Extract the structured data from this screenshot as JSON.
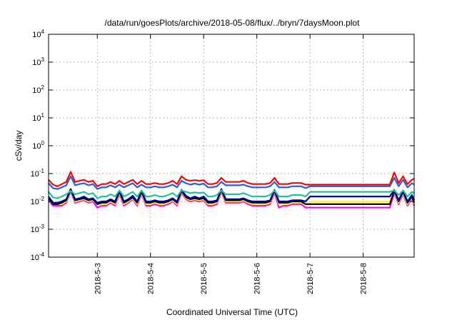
{
  "chart_data": {
    "type": "line",
    "title": "/data/run/goesPlots/archive/2018-05-08/flux/../bryn/7daysMoon.plot",
    "xlabel": "Coordinated Universal Time (UTC)",
    "ylabel": "cSv/day",
    "yscale": "log",
    "ylim": [
      0.0001,
      10000
    ],
    "y_ticks": [
      {
        "base": "10",
        "exp": "-4"
      },
      {
        "base": "10",
        "exp": "-3"
      },
      {
        "base": "10",
        "exp": "-2"
      },
      {
        "base": "10",
        "exp": "-1"
      },
      {
        "base": "10",
        "exp": "0"
      },
      {
        "base": "10",
        "exp": "1"
      },
      {
        "base": "10",
        "exp": "2"
      },
      {
        "base": "10",
        "exp": "3"
      },
      {
        "base": "10",
        "exp": "4"
      }
    ],
    "xlim": [
      "2018-05-02T02:00",
      "2018-05-08T23:00"
    ],
    "x_ticks": [
      {
        "label": "2018-5-3",
        "x": "2018-05-03T00:00"
      },
      {
        "label": "2018-5-4",
        "x": "2018-05-04T00:00"
      },
      {
        "label": "2018-5-5",
        "x": "2018-05-05T00:00"
      },
      {
        "label": "2018-5-6",
        "x": "2018-05-06T00:00"
      },
      {
        "label": "2018-5-7",
        "x": "2018-05-07T00:00"
      },
      {
        "label": "2018-5-8",
        "x": "2018-05-08T00:00"
      }
    ],
    "grid": true,
    "legend": "none",
    "x": [
      "2018-05-02T02:00",
      "2018-05-02T04:00",
      "2018-05-02T06:00",
      "2018-05-02T08:00",
      "2018-05-02T10:00",
      "2018-05-02T12:00",
      "2018-05-02T14:00",
      "2018-05-02T16:00",
      "2018-05-02T18:00",
      "2018-05-02T20:00",
      "2018-05-02T22:00",
      "2018-05-03T00:00",
      "2018-05-03T02:00",
      "2018-05-03T04:00",
      "2018-05-03T06:00",
      "2018-05-03T08:00",
      "2018-05-03T10:00",
      "2018-05-03T12:00",
      "2018-05-03T14:00",
      "2018-05-03T16:00",
      "2018-05-03T18:00",
      "2018-05-03T20:00",
      "2018-05-03T22:00",
      "2018-05-04T00:00",
      "2018-05-04T02:00",
      "2018-05-04T04:00",
      "2018-05-04T06:00",
      "2018-05-04T08:00",
      "2018-05-04T10:00",
      "2018-05-04T12:00",
      "2018-05-04T14:00",
      "2018-05-04T16:00",
      "2018-05-04T18:00",
      "2018-05-04T20:00",
      "2018-05-04T22:00",
      "2018-05-05T00:00",
      "2018-05-05T02:00",
      "2018-05-05T04:00",
      "2018-05-05T06:00",
      "2018-05-05T08:00",
      "2018-05-05T10:00",
      "2018-05-05T12:00",
      "2018-05-05T14:00",
      "2018-05-05T16:00",
      "2018-05-05T18:00",
      "2018-05-05T20:00",
      "2018-05-05T22:00",
      "2018-05-06T00:00",
      "2018-05-06T02:00",
      "2018-05-06T04:00",
      "2018-05-06T06:00",
      "2018-05-06T08:00",
      "2018-05-06T10:00",
      "2018-05-06T12:00",
      "2018-05-06T14:00",
      "2018-05-06T16:00",
      "2018-05-06T18:00",
      "2018-05-06T20:00",
      "2018-05-06T22:00",
      "2018-05-07T00:00",
      "2018-05-07T02:00",
      "2018-05-07T04:00",
      "2018-05-07T06:00",
      "2018-05-07T08:00",
      "2018-05-07T10:00",
      "2018-05-07T12:00",
      "2018-05-07T14:00",
      "2018-05-07T16:00",
      "2018-05-07T18:00",
      "2018-05-07T20:00",
      "2018-05-07T22:00",
      "2018-05-08T00:00",
      "2018-05-08T02:00",
      "2018-05-08T04:00",
      "2018-05-08T06:00",
      "2018-05-08T08:00",
      "2018-05-08T10:00",
      "2018-05-08T12:00",
      "2018-05-08T14:00",
      "2018-05-08T16:00",
      "2018-05-08T18:00",
      "2018-05-08T20:00",
      "2018-05-08T22:00",
      "2018-05-08T23:00"
    ],
    "series": [
      {
        "color": "#ff00ff",
        "values": [
          0.011,
          0.007,
          0.007,
          0.007,
          0.009,
          0.022,
          0.009,
          0.01,
          0.011,
          0.009,
          0.01,
          0.006,
          0.007,
          0.007,
          0.009,
          0.007,
          0.018,
          0.007,
          0.009,
          0.012,
          0.007,
          0.018,
          0.007,
          0.007,
          0.008,
          0.007,
          0.007,
          0.008,
          0.01,
          0.007,
          0.02,
          0.012,
          0.01,
          0.011,
          0.01,
          0.011,
          0.007,
          0.007,
          0.008,
          0.022,
          0.009,
          0.009,
          0.009,
          0.009,
          0.01,
          0.008,
          0.007,
          0.007,
          0.007,
          0.007,
          0.008,
          0.02,
          0.006,
          0.007,
          0.007,
          0.008,
          0.008,
          0.008,
          0.006,
          0.006,
          0.006,
          0.006,
          0.006,
          0.006,
          0.006,
          0.006,
          0.006,
          0.006,
          0.006,
          0.006,
          0.006,
          0.006,
          0.006,
          0.006,
          0.006,
          0.006,
          0.006,
          0.006,
          0.02,
          0.008,
          0.018,
          0.007,
          0.013,
          0.007
        ]
      },
      {
        "color": "#ffff00",
        "values": [
          0.012,
          0.008,
          0.008,
          0.008,
          0.01,
          0.024,
          0.01,
          0.011,
          0.012,
          0.01,
          0.011,
          0.008,
          0.008,
          0.008,
          0.01,
          0.008,
          0.02,
          0.008,
          0.01,
          0.013,
          0.008,
          0.02,
          0.008,
          0.008,
          0.009,
          0.008,
          0.008,
          0.009,
          0.011,
          0.008,
          0.022,
          0.013,
          0.011,
          0.012,
          0.011,
          0.012,
          0.008,
          0.008,
          0.009,
          0.024,
          0.01,
          0.01,
          0.01,
          0.01,
          0.011,
          0.009,
          0.008,
          0.008,
          0.008,
          0.008,
          0.009,
          0.022,
          0.008,
          0.008,
          0.008,
          0.009,
          0.009,
          0.009,
          0.008,
          0.01,
          0.01,
          0.01,
          0.01,
          0.01,
          0.01,
          0.01,
          0.01,
          0.01,
          0.01,
          0.01,
          0.01,
          0.01,
          0.01,
          0.01,
          0.01,
          0.01,
          0.01,
          0.01,
          0.022,
          0.009,
          0.02,
          0.008,
          0.014,
          0.008
        ]
      },
      {
        "color": "#000000",
        "values": [
          0.013,
          0.008,
          0.008,
          0.009,
          0.011,
          0.026,
          0.011,
          0.012,
          0.013,
          0.011,
          0.012,
          0.008,
          0.009,
          0.009,
          0.011,
          0.009,
          0.022,
          0.009,
          0.011,
          0.014,
          0.009,
          0.022,
          0.009,
          0.009,
          0.01,
          0.009,
          0.009,
          0.01,
          0.012,
          0.009,
          0.024,
          0.014,
          0.012,
          0.013,
          0.012,
          0.013,
          0.009,
          0.009,
          0.01,
          0.026,
          0.011,
          0.011,
          0.011,
          0.011,
          0.012,
          0.01,
          0.009,
          0.009,
          0.009,
          0.009,
          0.01,
          0.024,
          0.009,
          0.009,
          0.009,
          0.01,
          0.01,
          0.01,
          0.008,
          0.008,
          0.008,
          0.008,
          0.008,
          0.008,
          0.008,
          0.008,
          0.008,
          0.008,
          0.008,
          0.008,
          0.008,
          0.008,
          0.008,
          0.008,
          0.008,
          0.008,
          0.008,
          0.008,
          0.024,
          0.01,
          0.022,
          0.009,
          0.015,
          0.009
        ]
      },
      {
        "color": "#0000a0",
        "values": [
          0.015,
          0.009,
          0.009,
          0.01,
          0.012,
          0.028,
          0.012,
          0.013,
          0.015,
          0.012,
          0.013,
          0.009,
          0.01,
          0.01,
          0.012,
          0.01,
          0.024,
          0.01,
          0.012,
          0.016,
          0.01,
          0.024,
          0.01,
          0.01,
          0.011,
          0.01,
          0.01,
          0.011,
          0.013,
          0.01,
          0.026,
          0.016,
          0.013,
          0.015,
          0.013,
          0.015,
          0.01,
          0.01,
          0.011,
          0.028,
          0.012,
          0.012,
          0.012,
          0.012,
          0.013,
          0.011,
          0.01,
          0.01,
          0.01,
          0.01,
          0.011,
          0.026,
          0.01,
          0.01,
          0.01,
          0.011,
          0.011,
          0.011,
          0.01,
          0.015,
          0.015,
          0.015,
          0.015,
          0.015,
          0.015,
          0.015,
          0.015,
          0.015,
          0.015,
          0.015,
          0.015,
          0.015,
          0.015,
          0.015,
          0.015,
          0.015,
          0.015,
          0.015,
          0.026,
          0.011,
          0.024,
          0.01,
          0.017,
          0.011
        ]
      },
      {
        "color": "#20c0a0",
        "values": [
          0.022,
          0.014,
          0.013,
          0.015,
          0.018,
          0.024,
          0.018,
          0.02,
          0.022,
          0.018,
          0.02,
          0.013,
          0.015,
          0.015,
          0.018,
          0.015,
          0.025,
          0.015,
          0.018,
          0.022,
          0.015,
          0.025,
          0.015,
          0.015,
          0.017,
          0.015,
          0.015,
          0.017,
          0.02,
          0.015,
          0.025,
          0.022,
          0.02,
          0.021,
          0.02,
          0.021,
          0.015,
          0.015,
          0.017,
          0.025,
          0.018,
          0.018,
          0.018,
          0.018,
          0.02,
          0.017,
          0.015,
          0.015,
          0.015,
          0.015,
          0.017,
          0.025,
          0.015,
          0.015,
          0.015,
          0.017,
          0.017,
          0.017,
          0.015,
          0.022,
          0.022,
          0.022,
          0.022,
          0.022,
          0.022,
          0.022,
          0.022,
          0.022,
          0.022,
          0.022,
          0.022,
          0.022,
          0.022,
          0.022,
          0.022,
          0.022,
          0.022,
          0.022,
          0.025,
          0.017,
          0.025,
          0.015,
          0.022,
          0.02
        ]
      },
      {
        "color": "#2060e0",
        "values": [
          0.045,
          0.03,
          0.028,
          0.032,
          0.038,
          0.08,
          0.038,
          0.042,
          0.045,
          0.038,
          0.042,
          0.028,
          0.032,
          0.032,
          0.038,
          0.032,
          0.04,
          0.032,
          0.038,
          0.045,
          0.032,
          0.04,
          0.032,
          0.032,
          0.035,
          0.032,
          0.032,
          0.035,
          0.04,
          0.032,
          0.055,
          0.045,
          0.04,
          0.044,
          0.04,
          0.044,
          0.032,
          0.032,
          0.035,
          0.05,
          0.038,
          0.038,
          0.038,
          0.038,
          0.04,
          0.035,
          0.032,
          0.032,
          0.032,
          0.032,
          0.035,
          0.05,
          0.032,
          0.032,
          0.032,
          0.035,
          0.035,
          0.035,
          0.03,
          0.035,
          0.035,
          0.035,
          0.035,
          0.035,
          0.035,
          0.035,
          0.035,
          0.035,
          0.035,
          0.035,
          0.035,
          0.035,
          0.035,
          0.035,
          0.035,
          0.035,
          0.035,
          0.035,
          0.07,
          0.035,
          0.06,
          0.032,
          0.045,
          0.04
        ]
      },
      {
        "color": "#ff0000",
        "values": [
          0.06,
          0.04,
          0.035,
          0.042,
          0.05,
          0.115,
          0.05,
          0.055,
          0.06,
          0.05,
          0.055,
          0.035,
          0.042,
          0.042,
          0.05,
          0.042,
          0.055,
          0.042,
          0.05,
          0.06,
          0.042,
          0.055,
          0.042,
          0.042,
          0.046,
          0.042,
          0.042,
          0.046,
          0.055,
          0.042,
          0.08,
          0.06,
          0.055,
          0.058,
          0.055,
          0.058,
          0.042,
          0.042,
          0.046,
          0.07,
          0.05,
          0.05,
          0.05,
          0.05,
          0.055,
          0.046,
          0.042,
          0.042,
          0.042,
          0.042,
          0.046,
          0.07,
          0.042,
          0.042,
          0.042,
          0.046,
          0.046,
          0.046,
          0.04,
          0.04,
          0.04,
          0.04,
          0.04,
          0.04,
          0.04,
          0.04,
          0.04,
          0.04,
          0.04,
          0.04,
          0.04,
          0.04,
          0.04,
          0.04,
          0.04,
          0.04,
          0.04,
          0.04,
          0.11,
          0.046,
          0.08,
          0.042,
          0.06,
          0.065
        ]
      }
    ]
  }
}
